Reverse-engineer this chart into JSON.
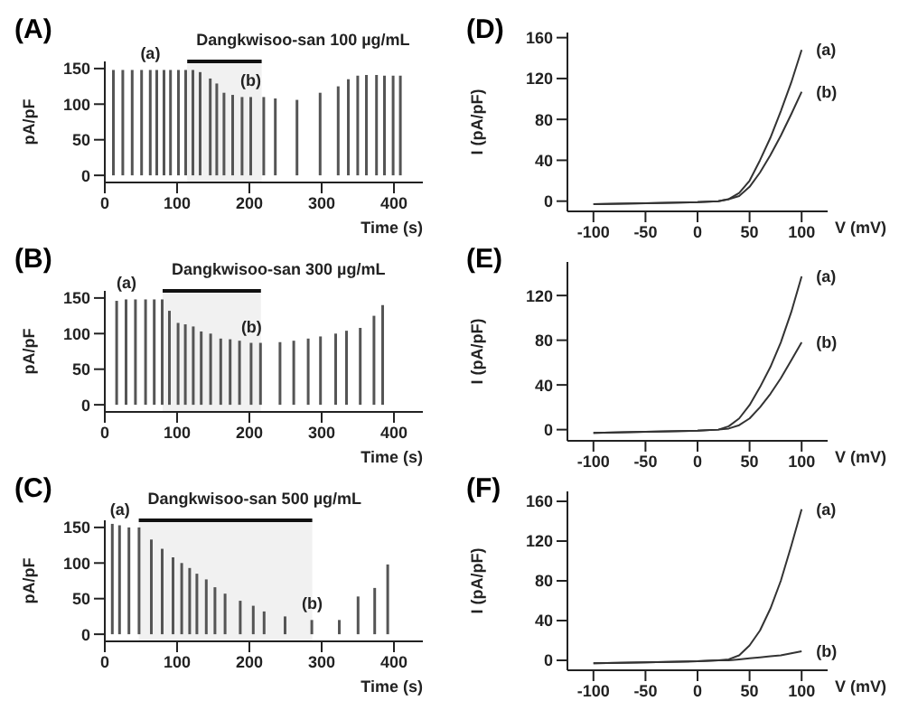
{
  "chart_data": [
    {
      "type": "bar",
      "title": "(A)",
      "xlabel": "Time (s)",
      "ylabel": "pA/pF",
      "color": "#555555",
      "x": [
        12,
        25,
        38,
        51,
        63,
        72,
        82,
        91,
        102,
        112,
        122,
        132,
        146,
        155,
        165,
        177,
        190,
        202,
        220,
        236,
        266,
        298,
        323,
        337,
        350,
        362,
        376,
        387,
        399,
        409
      ],
      "values": [
        148,
        148,
        148,
        148,
        148,
        148,
        148,
        148,
        148,
        148,
        148,
        145,
        136,
        129,
        116,
        113,
        110,
        110,
        110,
        108,
        106,
        116,
        125,
        135,
        140,
        141,
        141,
        140,
        140,
        140
      ],
      "xlim": [
        0,
        440
      ],
      "xticks": [
        0,
        100,
        200,
        300,
        400
      ],
      "ylim": [
        -10,
        160
      ],
      "yticks": [
        0,
        50,
        100,
        150
      ],
      "bands": [
        {
          "axis": "x",
          "from": 114,
          "to": 217,
          "label": "Dangkwisoo-san 100 µg/mL"
        }
      ],
      "annotations": [
        {
          "text": "(a)",
          "x": 63,
          "y": 148
        },
        {
          "text": "(b)",
          "x": 202,
          "y": 110
        }
      ]
    },
    {
      "type": "line",
      "title": "(D)",
      "xlabel": "V (mV)",
      "ylabel": "I (pA/pF)",
      "series": [
        {
          "name": "(a)",
          "color": "#333333",
          "x": [
            -100,
            -50,
            0,
            20,
            30,
            40,
            50,
            60,
            70,
            80,
            90,
            100
          ],
          "values": [
            -3,
            -2,
            -1,
            0,
            2,
            8,
            20,
            40,
            62,
            88,
            116,
            148
          ]
        },
        {
          "name": "(b)",
          "color": "#333333",
          "x": [
            -100,
            -50,
            0,
            20,
            30,
            40,
            50,
            60,
            70,
            80,
            90,
            100
          ],
          "values": [
            -3,
            -2,
            -1,
            0,
            2,
            5,
            14,
            28,
            45,
            64,
            85,
            107
          ]
        }
      ],
      "xlim": [
        -125,
        125
      ],
      "xticks": [
        -100,
        -50,
        0,
        50,
        100
      ],
      "ylim": [
        -10,
        165
      ],
      "yticks": [
        0,
        40,
        80,
        120,
        160
      ]
    },
    {
      "type": "bar",
      "title": "(B)",
      "xlabel": "Time (s)",
      "ylabel": "pA/pF",
      "color": "#555555",
      "x": [
        17,
        30,
        43,
        57,
        69,
        80,
        90,
        102,
        112,
        123,
        134,
        147,
        161,
        174,
        187,
        203,
        216,
        243,
        262,
        282,
        299,
        320,
        335,
        354,
        373,
        385
      ],
      "values": [
        146,
        148,
        148,
        148,
        148,
        148,
        132,
        115,
        113,
        110,
        103,
        100,
        93,
        92,
        90,
        87,
        87,
        88,
        90,
        93,
        96,
        100,
        104,
        108,
        125,
        140
      ],
      "xlim": [
        0,
        440
      ],
      "xticks": [
        0,
        100,
        200,
        300,
        400
      ],
      "ylim": [
        -10,
        160
      ],
      "yticks": [
        0,
        50,
        100,
        150
      ],
      "bands": [
        {
          "axis": "x",
          "from": 80,
          "to": 216,
          "label": "Dangkwisoo-san 300 µg/mL"
        }
      ],
      "annotations": [
        {
          "text": "(a)",
          "x": 30,
          "y": 148
        },
        {
          "text": "(b)",
          "x": 203,
          "y": 87
        }
      ]
    },
    {
      "type": "line",
      "title": "(E)",
      "xlabel": "V (mV)",
      "ylabel": "I (pA/pF)",
      "series": [
        {
          "name": "(a)",
          "color": "#333333",
          "x": [
            -100,
            -50,
            0,
            20,
            30,
            40,
            50,
            60,
            70,
            80,
            90,
            100
          ],
          "values": [
            -3,
            -2,
            -1,
            0,
            3,
            10,
            22,
            38,
            56,
            78,
            105,
            137
          ]
        },
        {
          "name": "(b)",
          "color": "#333333",
          "x": [
            -100,
            -50,
            0,
            20,
            30,
            40,
            50,
            60,
            70,
            80,
            90,
            100
          ],
          "values": [
            -3,
            -2,
            -1,
            0,
            1,
            4,
            10,
            20,
            32,
            46,
            62,
            78
          ]
        }
      ],
      "xlim": [
        -125,
        125
      ],
      "xticks": [
        -100,
        -50,
        0,
        50,
        100
      ],
      "ylim": [
        -10,
        150
      ],
      "yticks": [
        0,
        40,
        80,
        120
      ]
    },
    {
      "type": "bar",
      "title": "(C)",
      "xlabel": "Time (s)",
      "ylabel": "pA/pF",
      "color": "#555555",
      "x": [
        11,
        21,
        34,
        48,
        65,
        80,
        95,
        107,
        118,
        128,
        141,
        153,
        167,
        188,
        206,
        221,
        250,
        287,
        325,
        351,
        374,
        392
      ],
      "values": [
        155,
        153,
        150,
        150,
        133,
        120,
        108,
        100,
        93,
        85,
        77,
        66,
        57,
        47,
        40,
        32,
        25,
        20,
        20,
        53,
        65,
        98
      ],
      "xlim": [
        0,
        440
      ],
      "xticks": [
        0,
        100,
        200,
        300,
        400
      ],
      "ylim": [
        -10,
        160
      ],
      "yticks": [
        0,
        50,
        100,
        150
      ],
      "bands": [
        {
          "axis": "x",
          "from": 47,
          "to": 287,
          "label": "Dangkwisoo-san 500 µg/mL"
        }
      ],
      "annotations": [
        {
          "text": "(a)",
          "x": 21,
          "y": 153
        },
        {
          "text": "(b)",
          "x": 287,
          "y": 20
        }
      ]
    },
    {
      "type": "line",
      "title": "(F)",
      "xlabel": "V (mV)",
      "ylabel": "I (pA/pF)",
      "series": [
        {
          "name": "(a)",
          "color": "#333333",
          "x": [
            -100,
            -50,
            0,
            20,
            30,
            40,
            50,
            60,
            70,
            80,
            90,
            100
          ],
          "values": [
            -3,
            -2,
            -1,
            0,
            1,
            5,
            15,
            30,
            52,
            80,
            115,
            152
          ]
        },
        {
          "name": "(b)",
          "color": "#333333",
          "x": [
            -100,
            -50,
            0,
            20,
            30,
            40,
            50,
            60,
            70,
            80,
            90,
            100
          ],
          "values": [
            -3,
            -2,
            -1,
            0,
            0,
            1,
            2,
            3,
            4,
            5,
            7,
            9
          ]
        }
      ],
      "xlim": [
        -125,
        125
      ],
      "xticks": [
        -100,
        -50,
        0,
        50,
        100
      ],
      "ylim": [
        -10,
        170
      ],
      "yticks": [
        0,
        40,
        80,
        120,
        160
      ]
    }
  ]
}
